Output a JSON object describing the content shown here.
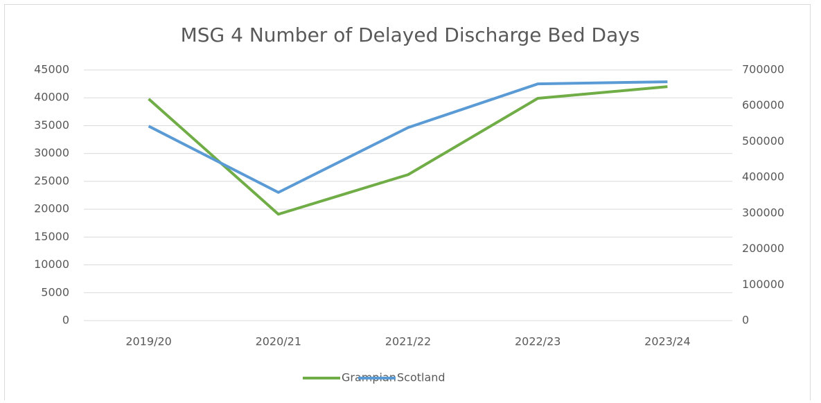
{
  "chart_data": {
    "type": "line",
    "title": "MSG 4 Number of Delayed Discharge Bed Days",
    "categories": [
      "2019/20",
      "2020/21",
      "2021/22",
      "2022/23",
      "2023/24"
    ],
    "series": [
      {
        "name": "Grampian",
        "color": "#70ad47",
        "values": [
          39800,
          19100,
          26200,
          39900,
          42000
        ]
      },
      {
        "name": "Scotland",
        "color": "#5b9bd5",
        "axis": "y2",
        "values": [
          543000,
          358000,
          539000,
          661000,
          667000
        ]
      }
    ],
    "ylim": [
      0,
      45000
    ],
    "yticks": [
      0,
      5000,
      10000,
      15000,
      20000,
      25000,
      30000,
      35000,
      40000,
      45000
    ],
    "y2lim": [
      0,
      700000
    ],
    "y2ticks": [
      0,
      100000,
      200000,
      300000,
      400000,
      500000,
      600000,
      700000
    ],
    "grid": true,
    "legend": "bottom"
  }
}
